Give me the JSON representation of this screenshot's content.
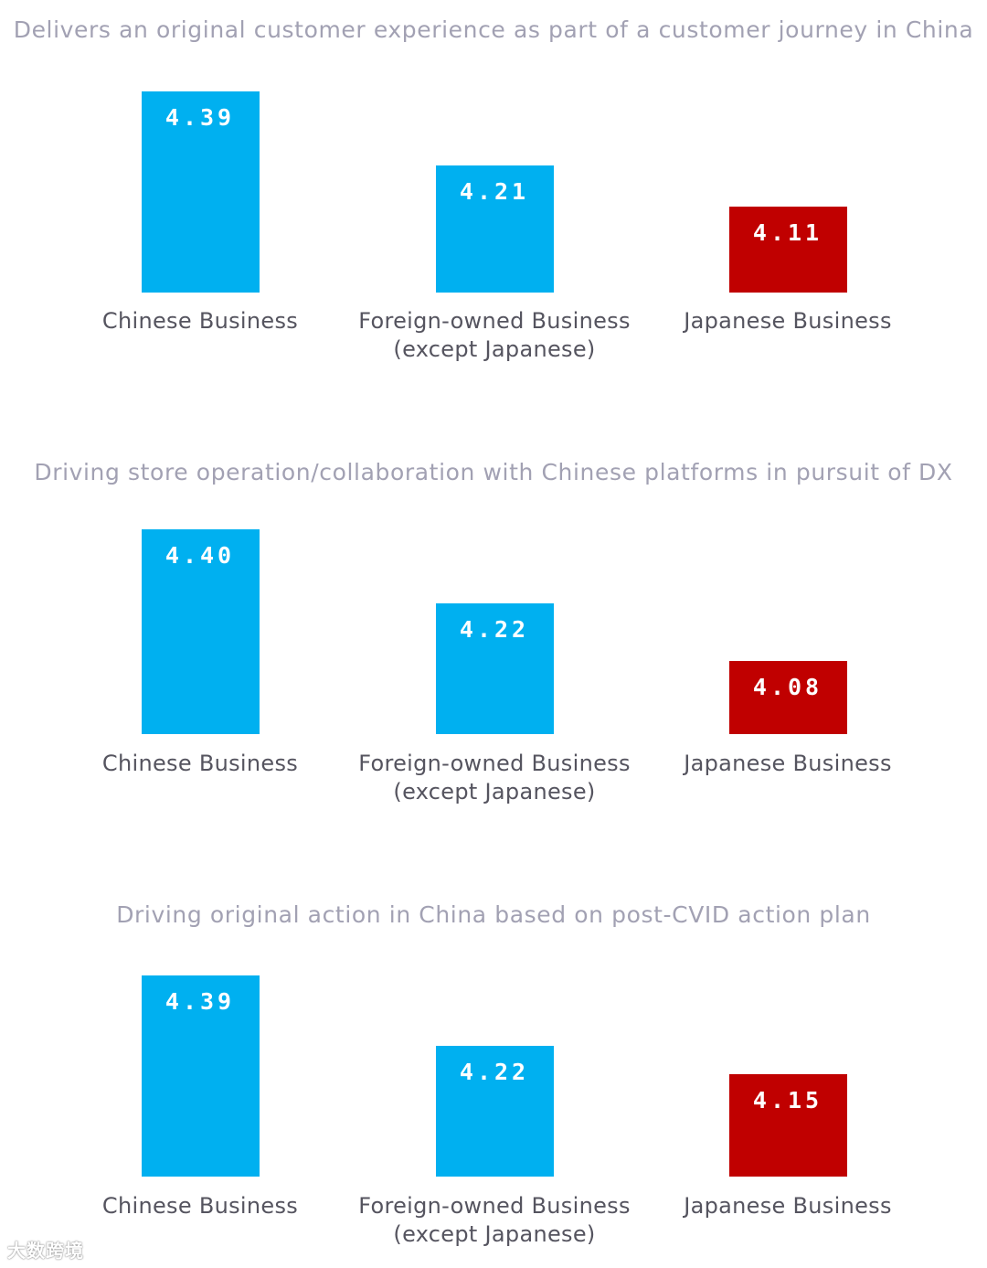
{
  "colors": {
    "title": "#a2a1b3",
    "label": "#55545f",
    "blue": "#00b0f0",
    "red": "#c00000",
    "value_text": "#ffffff"
  },
  "chart_data": [
    {
      "type": "bar",
      "title": "Delivers an original customer experience as part of a customer journey in China",
      "categories": [
        "Chinese Business",
        "Foreign-owned Business\n(except Japanese)",
        "Japanese Business"
      ],
      "values": [
        4.39,
        4.21,
        4.11
      ],
      "value_labels": [
        "4.39",
        "4.21",
        "4.11"
      ],
      "bar_colors": [
        "#00b0f0",
        "#00b0f0",
        "#c00000"
      ]
    },
    {
      "type": "bar",
      "title": "Driving store operation/collaboration with Chinese platforms in pursuit of DX",
      "categories": [
        "Chinese Business",
        "Foreign-owned Business\n(except Japanese)",
        "Japanese Business"
      ],
      "values": [
        4.4,
        4.22,
        4.08
      ],
      "value_labels": [
        "4.40",
        "4.22",
        "4.08"
      ],
      "bar_colors": [
        "#00b0f0",
        "#00b0f0",
        "#c00000"
      ]
    },
    {
      "type": "bar",
      "title": "Driving original action in China based on post-CVID action plan",
      "categories": [
        "Chinese Business",
        "Foreign-owned Business\n(except Japanese)",
        "Japanese Business"
      ],
      "values": [
        4.39,
        4.22,
        4.15
      ],
      "value_labels": [
        "4.39",
        "4.22",
        "4.15"
      ],
      "bar_colors": [
        "#00b0f0",
        "#00b0f0",
        "#c00000"
      ]
    }
  ],
  "watermark": "大数跨境"
}
